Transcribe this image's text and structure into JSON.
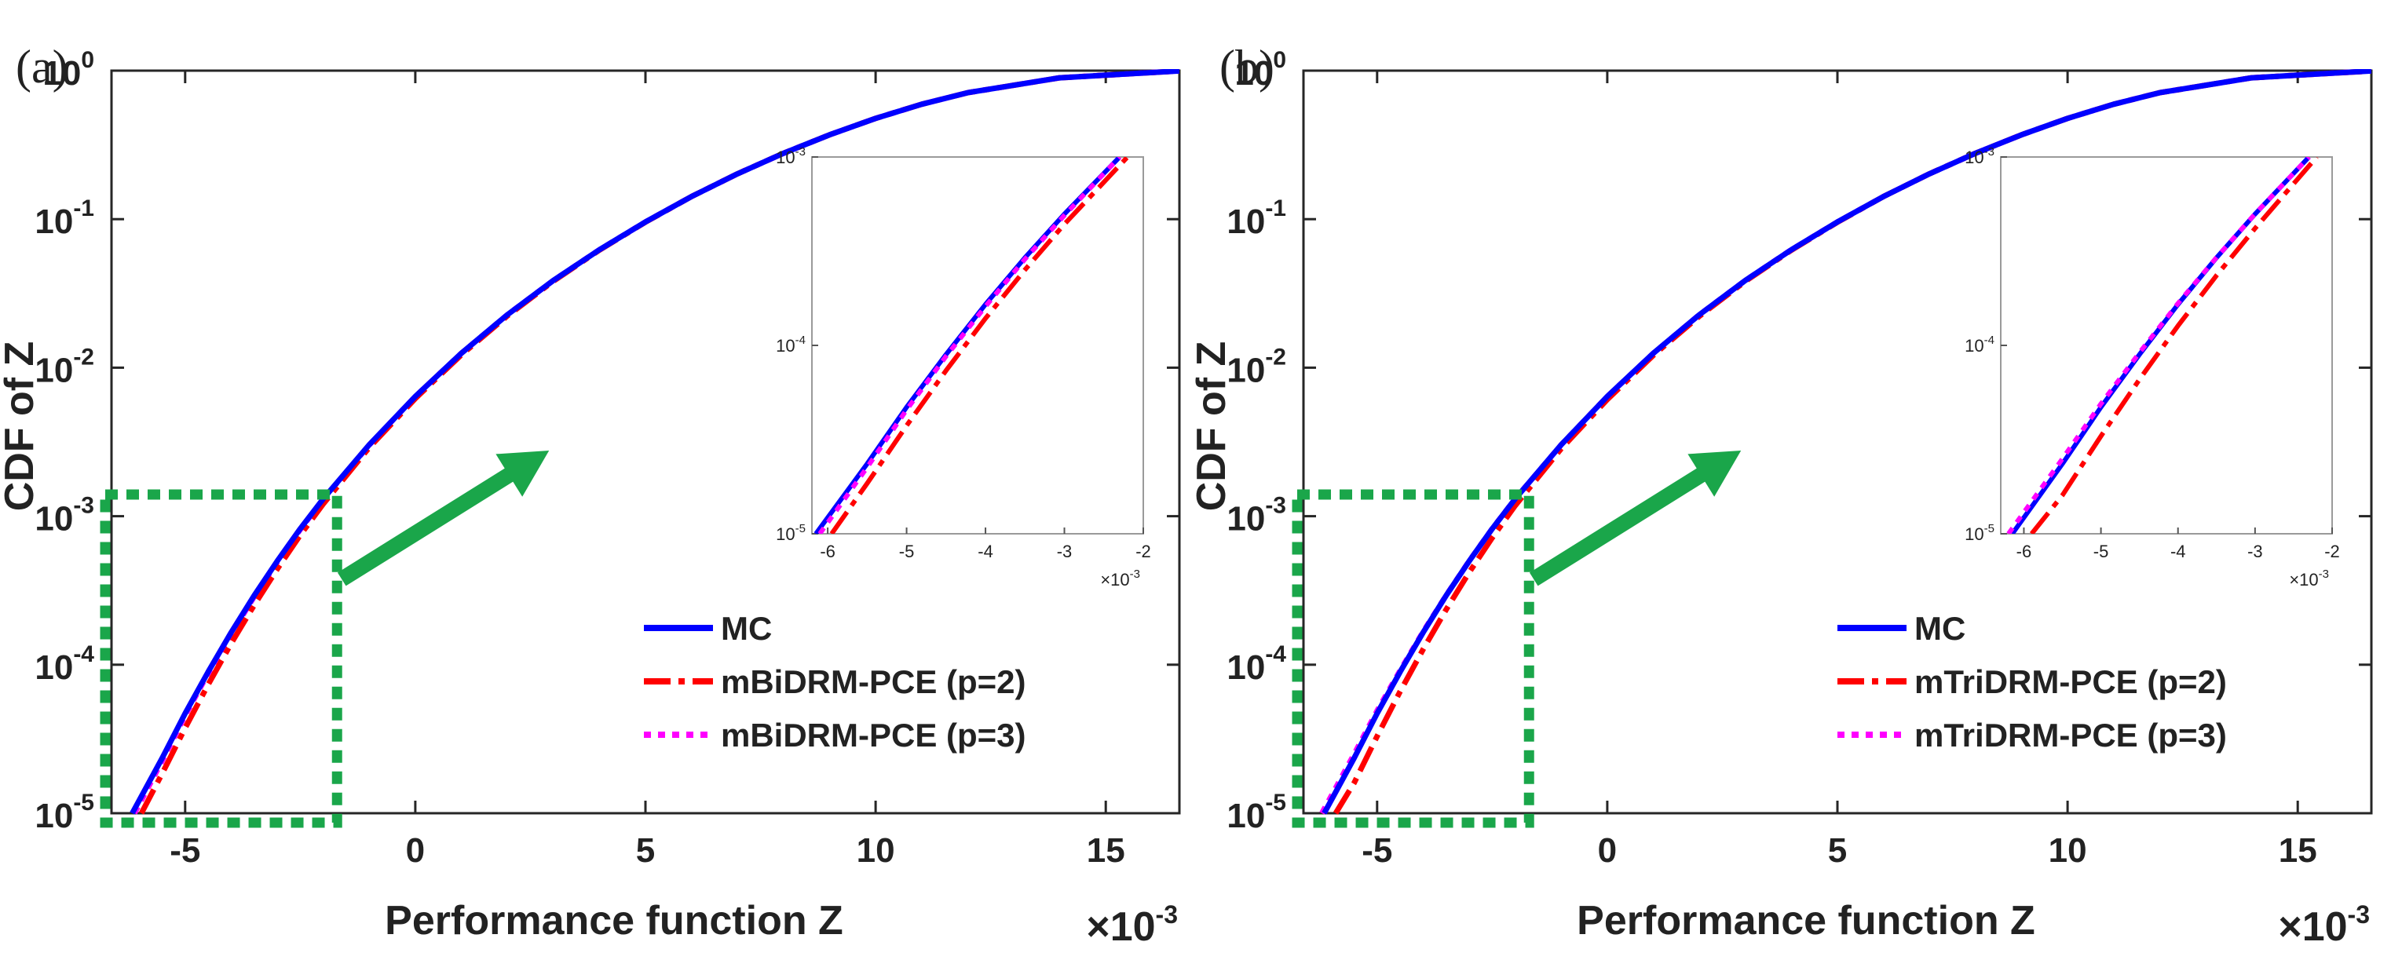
{
  "figure": {
    "panels": [
      {
        "label": "(a)",
        "xlabel": "Performance function Z",
        "ylabel": "CDF of Z",
        "x_multiplier": "×10",
        "x_exponent": "-3",
        "legend": [
          "MC",
          "mBiDRM-PCE (p=2)",
          "mBiDRM-PCE (p=3)"
        ],
        "inset_x_multiplier": "×10",
        "inset_x_exponent": "-3"
      },
      {
        "label": "(b)",
        "xlabel": "Performance function Z",
        "ylabel": "CDF of Z",
        "x_multiplier": "×10",
        "x_exponent": "-3",
        "legend": [
          "MC",
          "mTriDRM-PCE (p=2)",
          "mTriDRM-PCE (p=3)"
        ],
        "inset_x_multiplier": "×10",
        "inset_x_exponent": "-3"
      }
    ]
  },
  "colors": {
    "mc": "#0000ff",
    "p2": "#ff0000",
    "p3": "#ff00ff",
    "highlight": "#1aa64a",
    "axis": "#262626"
  },
  "chart_data": [
    {
      "type": "line",
      "title": "(a)",
      "xlabel": "Performance function Z",
      "ylabel": "CDF of Z",
      "x_unit_scale": 0.001,
      "xlim": [
        -6.6,
        16.6
      ],
      "ylim": [
        1e-05,
        1
      ],
      "yscale": "log",
      "xticks": [
        -5,
        0,
        5,
        10,
        15
      ],
      "yticks": [
        1e-05,
        0.0001,
        0.001,
        0.01,
        0.1,
        1
      ],
      "series": [
        {
          "name": "MC",
          "style": "solid",
          "x": [
            -6.15,
            -5.5,
            -5,
            -4.5,
            -4,
            -3.5,
            -3,
            -2.5,
            -2,
            -1,
            0,
            1,
            2,
            3,
            4,
            5,
            6,
            7,
            8,
            9,
            10,
            11,
            12,
            14,
            16.6
          ],
          "y": [
            1e-05,
            2.35e-05,
            4.7e-05,
            8.95e-05,
            0.000165,
            0.000292,
            0.000498,
            0.000822,
            0.00131,
            0.00303,
            0.0064,
            0.0125,
            0.0227,
            0.0387,
            0.0623,
            0.0958,
            0.142,
            0.202,
            0.278,
            0.37,
            0.477,
            0.594,
            0.71,
            0.895,
            0.995
          ]
        },
        {
          "name": "mBiDRM-PCE (p=2)",
          "style": "dashdot",
          "x": [
            -5.95,
            -5.5,
            -5,
            -4.5,
            -4,
            -3.5,
            -3,
            -2.5,
            -2,
            -1,
            0,
            1,
            2,
            3,
            4,
            5,
            6,
            7,
            8,
            9,
            10,
            11,
            12,
            14,
            16.6
          ],
          "y": [
            1e-05,
            1.85e-05,
            3.75e-05,
            7.35e-05,
            0.000139,
            0.000252,
            0.00044,
            0.000745,
            0.00121,
            0.0029,
            0.0062,
            0.0122,
            0.0223,
            0.0383,
            0.0619,
            0.0955,
            0.142,
            0.202,
            0.278,
            0.37,
            0.477,
            0.594,
            0.71,
            0.895,
            0.995
          ]
        },
        {
          "name": "mBiDRM-PCE (p=3)",
          "style": "dotted",
          "x": [
            -6.1,
            -5.5,
            -5,
            -4.5,
            -4,
            -3.5,
            -3,
            -2.5,
            -2,
            -1,
            0,
            1,
            2,
            3,
            4,
            5,
            6,
            7,
            8,
            9,
            10,
            11,
            12,
            14,
            16.6
          ],
          "y": [
            1e-05,
            2.25e-05,
            4.55e-05,
            8.75e-05,
            0.000161,
            0.000287,
            0.00049,
            0.000812,
            0.0013,
            0.00302,
            0.0064,
            0.0125,
            0.0227,
            0.0387,
            0.0623,
            0.0958,
            0.142,
            0.202,
            0.278,
            0.37,
            0.477,
            0.594,
            0.71,
            0.895,
            0.995
          ]
        }
      ],
      "inset": {
        "xlim": [
          -6.2,
          -2
        ],
        "ylim": [
          1e-05,
          0.001
        ],
        "yscale": "log",
        "xticks": [
          -6,
          -5,
          -4,
          -3,
          -2
        ],
        "series": [
          {
            "name": "MC",
            "x": [
              -6.15,
              -5.5,
              -5,
              -4.5,
              -4,
              -3.5,
              -3,
              -2.3
            ],
            "y": [
              1e-05,
              2.35e-05,
              4.7e-05,
              8.95e-05,
              0.000165,
              0.000292,
              0.000498,
              0.001
            ]
          },
          {
            "name": "mBiDRM-PCE (p=2)",
            "x": [
              -5.95,
              -5.5,
              -5,
              -4.5,
              -4,
              -3.5,
              -3,
              -2.2
            ],
            "y": [
              1e-05,
              1.85e-05,
              3.75e-05,
              7.35e-05,
              0.000139,
              0.000252,
              0.00044,
              0.001
            ]
          },
          {
            "name": "mBiDRM-PCE (p=3)",
            "x": [
              -6.1,
              -5.5,
              -5,
              -4.5,
              -4,
              -3.5,
              -3,
              -2.3
            ],
            "y": [
              1e-05,
              2.25e-05,
              4.55e-05,
              8.75e-05,
              0.000161,
              0.000287,
              0.00049,
              0.001
            ]
          }
        ]
      },
      "annotations": {
        "zoom_box_x": [
          -6.6,
          -1.7
        ],
        "zoom_box_y": [
          1e-05,
          0.0014
        ]
      }
    },
    {
      "type": "line",
      "title": "(b)",
      "xlabel": "Performance function Z",
      "ylabel": "CDF of Z",
      "x_unit_scale": 0.001,
      "xlim": [
        -6.6,
        16.6
      ],
      "ylim": [
        1e-05,
        1
      ],
      "yscale": "log",
      "xticks": [
        -5,
        0,
        5,
        10,
        15
      ],
      "yticks": [
        1e-05,
        0.0001,
        0.001,
        0.01,
        0.1,
        1
      ],
      "series": [
        {
          "name": "MC",
          "style": "solid",
          "x": [
            -6.15,
            -5.5,
            -5,
            -4.5,
            -4,
            -3.5,
            -3,
            -2.5,
            -2,
            -1,
            0,
            1,
            2,
            3,
            4,
            5,
            6,
            7,
            8,
            9,
            10,
            11,
            12,
            14,
            16.6
          ],
          "y": [
            1e-05,
            2.35e-05,
            4.7e-05,
            8.95e-05,
            0.000165,
            0.000292,
            0.000498,
            0.000822,
            0.00131,
            0.00303,
            0.0064,
            0.0125,
            0.0227,
            0.0387,
            0.0623,
            0.0958,
            0.142,
            0.202,
            0.278,
            0.37,
            0.477,
            0.594,
            0.71,
            0.895,
            0.995
          ]
        },
        {
          "name": "mTriDRM-PCE (p=2)",
          "style": "dashdot",
          "x": [
            -5.9,
            -5.5,
            -5,
            -4.5,
            -4,
            -3.5,
            -3,
            -2.5,
            -2,
            -1,
            0,
            1,
            2,
            3,
            4,
            5,
            6,
            7,
            8,
            9,
            10,
            11,
            12,
            14,
            16.6
          ],
          "y": [
            1e-05,
            1.6e-05,
            3.3e-05,
            6.6e-05,
            0.000127,
            0.000235,
            0.000418,
            0.000715,
            0.00118,
            0.00285,
            0.0061,
            0.0121,
            0.0222,
            0.0382,
            0.0618,
            0.0954,
            0.142,
            0.202,
            0.278,
            0.37,
            0.477,
            0.594,
            0.71,
            0.895,
            0.995
          ]
        },
        {
          "name": "mTriDRM-PCE (p=3)",
          "style": "dotted",
          "x": [
            -6.2,
            -5.5,
            -5,
            -4.5,
            -4,
            -3.5,
            -3,
            -2.5,
            -2,
            -1,
            0,
            1,
            2,
            3,
            4,
            5,
            6,
            7,
            8,
            9,
            10,
            11,
            12,
            14,
            16.6
          ],
          "y": [
            1e-05,
            2.5e-05,
            4.9e-05,
            9.15e-05,
            0.000167,
            0.000293,
            0.000499,
            0.000823,
            0.00131,
            0.00303,
            0.0064,
            0.0125,
            0.0227,
            0.0387,
            0.0623,
            0.0958,
            0.142,
            0.202,
            0.278,
            0.37,
            0.477,
            0.594,
            0.71,
            0.895,
            0.995
          ]
        }
      ],
      "inset": {
        "xlim": [
          -6.3,
          -2
        ],
        "ylim": [
          1e-05,
          0.001
        ],
        "yscale": "log",
        "xticks": [
          -6,
          -5,
          -4,
          -3,
          -2
        ],
        "series": [
          {
            "name": "MC",
            "x": [
              -6.15,
              -5.5,
              -5,
              -4.5,
              -4,
              -3.5,
              -3,
              -2.3
            ],
            "y": [
              1e-05,
              2.35e-05,
              4.7e-05,
              8.95e-05,
              0.000165,
              0.000292,
              0.000498,
              0.001
            ]
          },
          {
            "name": "mTriDRM-PCE (p=2)",
            "x": [
              -5.9,
              -5.5,
              -5,
              -4.5,
              -4,
              -3.5,
              -3,
              -2.2
            ],
            "y": [
              1e-05,
              1.6e-05,
              3.3e-05,
              6.6e-05,
              0.000127,
              0.000235,
              0.000418,
              0.001
            ]
          },
          {
            "name": "mTriDRM-PCE (p=3)",
            "x": [
              -6.2,
              -5.5,
              -5,
              -4.5,
              -4,
              -3.5,
              -3,
              -2.3
            ],
            "y": [
              1e-05,
              2.5e-05,
              4.9e-05,
              9.15e-05,
              0.000167,
              0.000293,
              0.000499,
              0.001
            ]
          }
        ]
      },
      "annotations": {
        "zoom_box_x": [
          -6.6,
          -1.7
        ],
        "zoom_box_y": [
          1e-05,
          0.0014
        ]
      }
    }
  ]
}
